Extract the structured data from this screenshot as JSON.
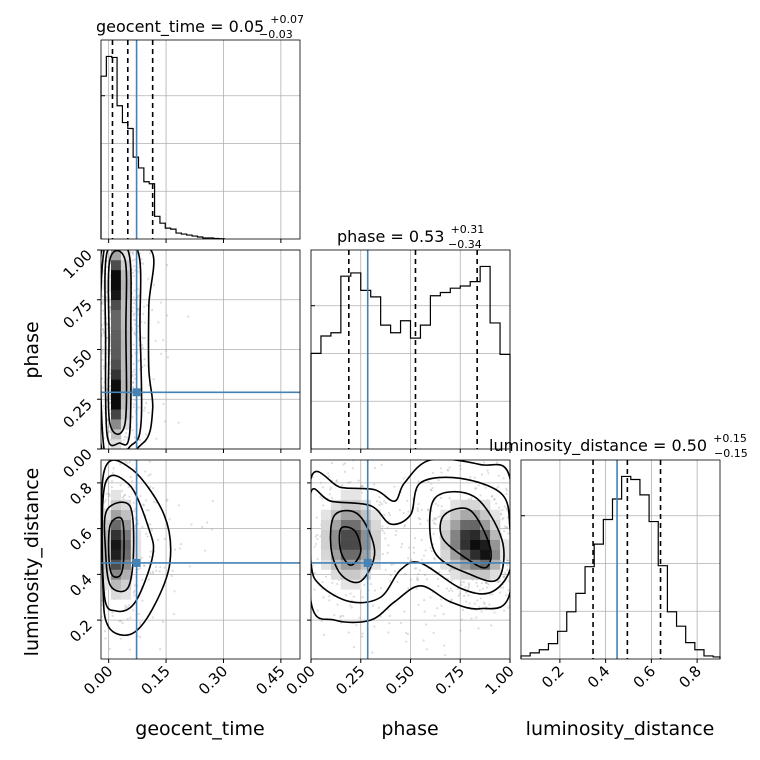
{
  "chart_data": {
    "type": "corner",
    "parameters": [
      {
        "key": "geocent_time",
        "label": "geocent_time",
        "title": "geocent_time = 0.05",
        "title_plus": "+0.07",
        "title_minus": "−0.03",
        "range": [
          -0.02,
          0.5
        ],
        "ticks": [
          0.0,
          0.15,
          0.3,
          0.45
        ],
        "tick_labels": [
          "0.00",
          "0.15",
          "0.30",
          "0.45"
        ],
        "quantiles": [
          0.01,
          0.05,
          0.115
        ],
        "truth": 0.073,
        "hist": {
          "edges": [
            -0.02,
            -0.006,
            0.008,
            0.022,
            0.036,
            0.05,
            0.064,
            0.078,
            0.092,
            0.106,
            0.12,
            0.134,
            0.148,
            0.162,
            0.176,
            0.19,
            0.204,
            0.218,
            0.232,
            0.246,
            0.26,
            0.274,
            0.288,
            0.302
          ],
          "counts": [
            165,
            185,
            184,
            135,
            118,
            112,
            83,
            72,
            58,
            56,
            23,
            16,
            11,
            10,
            6,
            5,
            4,
            3,
            2,
            1,
            1,
            0.5,
            0.3
          ]
        }
      },
      {
        "key": "phase",
        "label": "phase",
        "title": "phase = 0.53",
        "title_plus": "+0.31",
        "title_minus": "−0.34",
        "range": [
          0.0,
          1.0
        ],
        "ticks": [
          0.0,
          0.25,
          0.5,
          0.75,
          1.0
        ],
        "tick_labels": [
          "0.00",
          "0.25",
          "0.50",
          "0.75",
          "1.00"
        ],
        "quantiles": [
          0.19,
          0.525,
          0.835
        ],
        "truth": 0.285,
        "hist": {
          "edges": [
            0.0,
            0.05,
            0.1,
            0.15,
            0.2,
            0.25,
            0.3,
            0.35,
            0.4,
            0.45,
            0.5,
            0.55,
            0.6,
            0.65,
            0.7,
            0.75,
            0.8,
            0.85,
            0.9,
            0.95,
            1.0
          ],
          "counts": [
            88,
            104,
            107,
            159,
            162,
            146,
            140,
            114,
            107,
            118,
            102,
            114,
            141,
            144,
            148,
            150,
            154,
            168,
            116,
            87
          ]
        }
      },
      {
        "key": "luminosity_distance",
        "label": "luminosity_distance",
        "title": "luminosity_distance = 0.50",
        "title_plus": "+0.15",
        "title_minus": "−0.15",
        "range": [
          0.03,
          0.9
        ],
        "ticks": [
          0.2,
          0.4,
          0.6,
          0.8
        ],
        "tick_labels": [
          "0.2",
          "0.4",
          "0.6",
          "0.8"
        ],
        "quantiles": [
          0.345,
          0.495,
          0.64
        ],
        "truth": 0.45,
        "hist": {
          "edges": [
            0.03,
            0.07,
            0.11,
            0.15,
            0.19,
            0.23,
            0.27,
            0.31,
            0.35,
            0.39,
            0.43,
            0.47,
            0.51,
            0.55,
            0.59,
            0.63,
            0.67,
            0.71,
            0.75,
            0.79,
            0.83,
            0.87,
            0.9
          ],
          "counts": [
            3,
            6,
            9,
            15,
            27,
            46,
            64,
            90,
            112,
            136,
            156,
            178,
            175,
            160,
            134,
            91,
            46,
            32,
            16,
            9,
            3,
            2
          ]
        }
      }
    ],
    "pairs": [
      {
        "x": "geocent_time",
        "y": "phase",
        "density_blobs": [
          {
            "x": 0.023,
            "y": 0.85,
            "sx": 0.012,
            "sy": 0.08,
            "w": 1.0
          },
          {
            "x": 0.025,
            "y": 0.55,
            "sx": 0.014,
            "sy": 0.2,
            "w": 0.7
          },
          {
            "x": 0.023,
            "y": 0.25,
            "sx": 0.012,
            "sy": 0.1,
            "w": 0.9
          }
        ],
        "contours": [
          [
            [
              0.003,
              0.95
            ],
            [
              0.043,
              0.95
            ],
            [
              0.045,
              0.6
            ],
            [
              0.043,
              0.13
            ],
            [
              0.003,
              0.13
            ],
            [
              0.001,
              0.55
            ]
          ],
          [
            [
              -0.004,
              0.99
            ],
            [
              0.052,
              0.99
            ],
            [
              0.058,
              0.6
            ],
            [
              0.055,
              0.08
            ],
            [
              0.028,
              0.03
            ],
            [
              -0.004,
              0.07
            ],
            [
              -0.008,
              0.55
            ]
          ],
          [
            [
              -0.012,
              1.0
            ],
            [
              0.075,
              1.0
            ],
            [
              0.082,
              0.6
            ],
            [
              0.085,
              0.14
            ],
            [
              0.06,
              0.02
            ],
            [
              -0.012,
              0.0
            ]
          ],
          [
            [
              -0.018,
              1.0
            ],
            [
              0.11,
              1.0
            ],
            [
              0.105,
              0.72
            ],
            [
              0.105,
              0.4
            ],
            [
              0.115,
              0.2
            ],
            [
              0.09,
              0.03
            ],
            [
              -0.018,
              0.0
            ]
          ]
        ]
      },
      {
        "x": "geocent_time",
        "y": "luminosity_distance",
        "density_blobs": [
          {
            "x": 0.025,
            "y": 0.52,
            "sx": 0.02,
            "sy": 0.1,
            "w": 1.0
          }
        ],
        "contours": [
          [
            [
              0.005,
              0.62
            ],
            [
              0.035,
              0.64
            ],
            [
              0.04,
              0.5
            ],
            [
              0.032,
              0.4
            ],
            [
              0.008,
              0.4
            ],
            [
              0.0,
              0.5
            ]
          ],
          [
            [
              -0.005,
              0.68
            ],
            [
              0.055,
              0.7
            ],
            [
              0.065,
              0.5
            ],
            [
              0.05,
              0.34
            ],
            [
              0.005,
              0.35
            ],
            [
              -0.008,
              0.5
            ]
          ],
          [
            [
              -0.01,
              0.79
            ],
            [
              0.055,
              0.79
            ],
            [
              0.105,
              0.6
            ],
            [
              0.115,
              0.48
            ],
            [
              0.07,
              0.28
            ],
            [
              0.02,
              0.24
            ],
            [
              -0.012,
              0.32
            ]
          ],
          [
            [
              -0.012,
              0.85
            ],
            [
              0.06,
              0.86
            ],
            [
              0.145,
              0.66
            ],
            [
              0.16,
              0.45
            ],
            [
              0.115,
              0.25
            ],
            [
              0.06,
              0.14
            ],
            [
              0.0,
              0.17
            ],
            [
              -0.015,
              0.35
            ]
          ]
        ]
      },
      {
        "x": "phase",
        "y": "luminosity_distance",
        "density_blobs": [
          {
            "x": 0.2,
            "y": 0.55,
            "sx": 0.07,
            "sy": 0.09,
            "w": 0.8
          },
          {
            "x": 0.8,
            "y": 0.55,
            "sx": 0.07,
            "sy": 0.08,
            "w": 0.9
          },
          {
            "x": 0.88,
            "y": 0.49,
            "sx": 0.04,
            "sy": 0.05,
            "w": 0.6
          }
        ],
        "contours": [
          [
            [
              0.15,
              0.6
            ],
            [
              0.22,
              0.59
            ],
            [
              0.25,
              0.5
            ],
            [
              0.2,
              0.44
            ],
            [
              0.15,
              0.5
            ]
          ],
          [
            [
              0.67,
              0.66
            ],
            [
              0.8,
              0.68
            ],
            [
              0.9,
              0.52
            ],
            [
              0.88,
              0.43
            ],
            [
              0.78,
              0.47
            ],
            [
              0.66,
              0.56
            ]
          ],
          [
            [
              0.12,
              0.66
            ],
            [
              0.24,
              0.66
            ],
            [
              0.32,
              0.5
            ],
            [
              0.25,
              0.37
            ],
            [
              0.15,
              0.4
            ],
            [
              0.1,
              0.52
            ]
          ],
          [
            [
              0.62,
              0.73
            ],
            [
              0.82,
              0.74
            ],
            [
              0.96,
              0.55
            ],
            [
              0.94,
              0.38
            ],
            [
              0.8,
              0.4
            ],
            [
              0.62,
              0.5
            ]
          ],
          [
            [
              0.0,
              0.76
            ],
            [
              0.1,
              0.72
            ],
            [
              0.3,
              0.7
            ],
            [
              0.4,
              0.62
            ],
            [
              0.5,
              0.66
            ],
            [
              0.55,
              0.8
            ],
            [
              0.75,
              0.82
            ],
            [
              0.96,
              0.75
            ],
            [
              1.0,
              0.6
            ],
            [
              1.0,
              0.42
            ],
            [
              0.9,
              0.32
            ],
            [
              0.75,
              0.34
            ],
            [
              0.55,
              0.45
            ],
            [
              0.45,
              0.42
            ],
            [
              0.35,
              0.3
            ],
            [
              0.2,
              0.28
            ],
            [
              0.05,
              0.35
            ],
            [
              0.0,
              0.45
            ]
          ],
          [
            [
              0.0,
              0.82
            ],
            [
              0.15,
              0.78
            ],
            [
              0.32,
              0.77
            ],
            [
              0.42,
              0.72
            ],
            [
              0.47,
              0.8
            ],
            [
              0.6,
              0.9
            ],
            [
              0.85,
              0.88
            ],
            [
              1.0,
              0.82
            ],
            [
              1.0,
              0.32
            ],
            [
              0.85,
              0.25
            ],
            [
              0.7,
              0.28
            ],
            [
              0.55,
              0.35
            ],
            [
              0.42,
              0.28
            ],
            [
              0.3,
              0.2
            ],
            [
              0.12,
              0.2
            ],
            [
              0.0,
              0.28
            ]
          ]
        ]
      }
    ]
  }
}
